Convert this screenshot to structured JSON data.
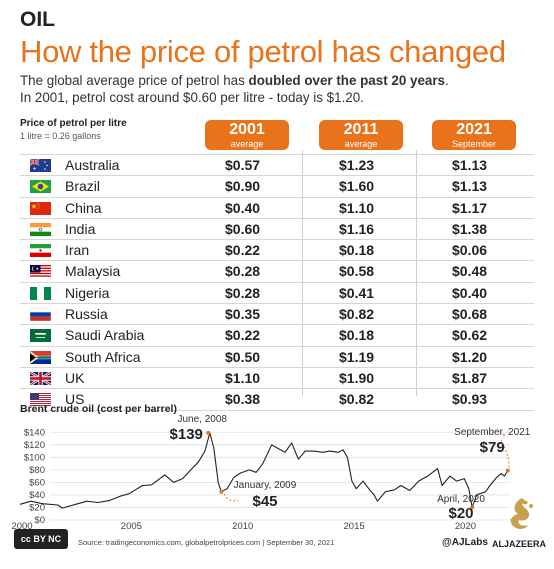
{
  "kicker": "OIL",
  "title": "How the price of petrol has changed",
  "subtitle": {
    "part1": "The global average price of petrol has ",
    "bold": "doubled over the past 20 years",
    "part2": ".",
    "line2": "In 2001, petrol cost around $0.60 per litre - today is $1.20."
  },
  "table": {
    "note_title": "Price of petrol per litre",
    "note_sub": "1 litre = 0.26 gallons",
    "columns": [
      {
        "year": "2001",
        "sub": "average"
      },
      {
        "year": "2011",
        "sub": "average"
      },
      {
        "year": "2021",
        "sub": "September"
      }
    ],
    "rows": [
      {
        "country": "Australia",
        "flag": "australia-flag",
        "v2001": "$0.57",
        "v2011": "$1.23",
        "v2021": "$1.13"
      },
      {
        "country": "Brazil",
        "flag": "brazil-flag",
        "v2001": "$0.90",
        "v2011": "$1.60",
        "v2021": "$1.13"
      },
      {
        "country": "China",
        "flag": "china-flag",
        "v2001": "$0.40",
        "v2011": "$1.10",
        "v2021": "$1.17"
      },
      {
        "country": "India",
        "flag": "india-flag",
        "v2001": "$0.60",
        "v2011": "$1.16",
        "v2021": "$1.38"
      },
      {
        "country": "Iran",
        "flag": "iran-flag",
        "v2001": "$0.22",
        "v2011": "$0.18",
        "v2021": "$0.06"
      },
      {
        "country": "Malaysia",
        "flag": "malaysia-flag",
        "v2001": "$0.28",
        "v2011": "$0.58",
        "v2021": "$0.48"
      },
      {
        "country": "Nigeria",
        "flag": "nigeria-flag",
        "v2001": "$0.28",
        "v2011": "$0.41",
        "v2021": "$0.40"
      },
      {
        "country": "Russia",
        "flag": "russia-flag",
        "v2001": "$0.35",
        "v2011": "$0.82",
        "v2021": "$0.68"
      },
      {
        "country": "Saudi Arabia",
        "flag": "saudi-arabia-flag",
        "v2001": "$0.22",
        "v2011": "$0.18",
        "v2021": "$0.62"
      },
      {
        "country": "South Africa",
        "flag": "south-africa-flag",
        "v2001": "$0.50",
        "v2011": "$1.19",
        "v2021": "$1.20"
      },
      {
        "country": "UK",
        "flag": "uk-flag",
        "v2001": "$1.10",
        "v2011": "$1.90",
        "v2021": "$1.87"
      },
      {
        "country": "US",
        "flag": "us-flag",
        "v2001": "$0.38",
        "v2011": "$0.82",
        "v2021": "$0.93"
      }
    ]
  },
  "chart_data": {
    "type": "line",
    "title": "Brent crude oil (cost per barrel)",
    "x_ticks": [
      "2000",
      "2005",
      "2010",
      "2015",
      "2020"
    ],
    "y_ticks": [
      "$0",
      "$20",
      "$40",
      "$60",
      "$80",
      "$100",
      "$120",
      "$140"
    ],
    "xlim": [
      2000,
      2022
    ],
    "ylim": [
      0,
      150
    ],
    "grid": true,
    "series": [
      {
        "values": [
          [
            2000.0,
            25
          ],
          [
            2000.5,
            30
          ],
          [
            2001.0,
            26
          ],
          [
            2001.7,
            24
          ],
          [
            2001.9,
            19
          ],
          [
            2002.5,
            25
          ],
          [
            2003.0,
            30
          ],
          [
            2003.5,
            28
          ],
          [
            2004.0,
            31
          ],
          [
            2004.5,
            38
          ],
          [
            2004.9,
            42
          ],
          [
            2005.5,
            55
          ],
          [
            2005.9,
            56
          ],
          [
            2006.5,
            72
          ],
          [
            2006.9,
            60
          ],
          [
            2007.3,
            66
          ],
          [
            2007.8,
            85
          ],
          [
            2008.0,
            92
          ],
          [
            2008.3,
            110
          ],
          [
            2008.52,
            139
          ],
          [
            2008.7,
            115
          ],
          [
            2008.9,
            60
          ],
          [
            2009.04,
            45
          ],
          [
            2009.3,
            50
          ],
          [
            2009.6,
            68
          ],
          [
            2009.9,
            75
          ],
          [
            2010.3,
            80
          ],
          [
            2010.6,
            76
          ],
          [
            2010.9,
            90
          ],
          [
            2011.3,
            120
          ],
          [
            2011.6,
            114
          ],
          [
            2011.9,
            108
          ],
          [
            2012.2,
            123
          ],
          [
            2012.5,
            97
          ],
          [
            2012.8,
            110
          ],
          [
            2013.2,
            110
          ],
          [
            2013.6,
            108
          ],
          [
            2013.9,
            110
          ],
          [
            2014.3,
            108
          ],
          [
            2014.5,
            112
          ],
          [
            2014.7,
            100
          ],
          [
            2014.9,
            62
          ],
          [
            2015.1,
            50
          ],
          [
            2015.4,
            62
          ],
          [
            2015.7,
            48
          ],
          [
            2015.9,
            40
          ],
          [
            2016.05,
            30
          ],
          [
            2016.4,
            45
          ],
          [
            2016.8,
            48
          ],
          [
            2017.1,
            55
          ],
          [
            2017.5,
            47
          ],
          [
            2017.9,
            62
          ],
          [
            2018.3,
            70
          ],
          [
            2018.75,
            82
          ],
          [
            2018.95,
            55
          ],
          [
            2019.3,
            70
          ],
          [
            2019.6,
            62
          ],
          [
            2019.95,
            66
          ],
          [
            2020.15,
            50
          ],
          [
            2020.3,
            20
          ],
          [
            2020.5,
            40
          ],
          [
            2020.9,
            45
          ],
          [
            2021.1,
            55
          ],
          [
            2021.4,
            68
          ],
          [
            2021.6,
            74
          ],
          [
            2021.75,
            70
          ],
          [
            2021.9,
            79
          ]
        ]
      }
    ],
    "annotations": [
      {
        "date": "June, 2008",
        "value": "$139",
        "x": 2008.45,
        "y": 139
      },
      {
        "date": "January, 2009",
        "value": "$45",
        "x": 2009.04,
        "y": 45
      },
      {
        "date": "April, 2020",
        "value": "$20",
        "x": 2020.3,
        "y": 20
      },
      {
        "date": "September, 2021",
        "value": "$79",
        "x": 2021.9,
        "y": 79
      }
    ]
  },
  "footer": {
    "license": "cc BY NC SA",
    "source": "Source: tradingeconomics.com, globalpetrolprices.com | September 30, 2021",
    "credit": "@AJLabs",
    "brand": "ALJAZEERA"
  },
  "colors": {
    "accent": "#e8731a",
    "line": "#222222"
  }
}
